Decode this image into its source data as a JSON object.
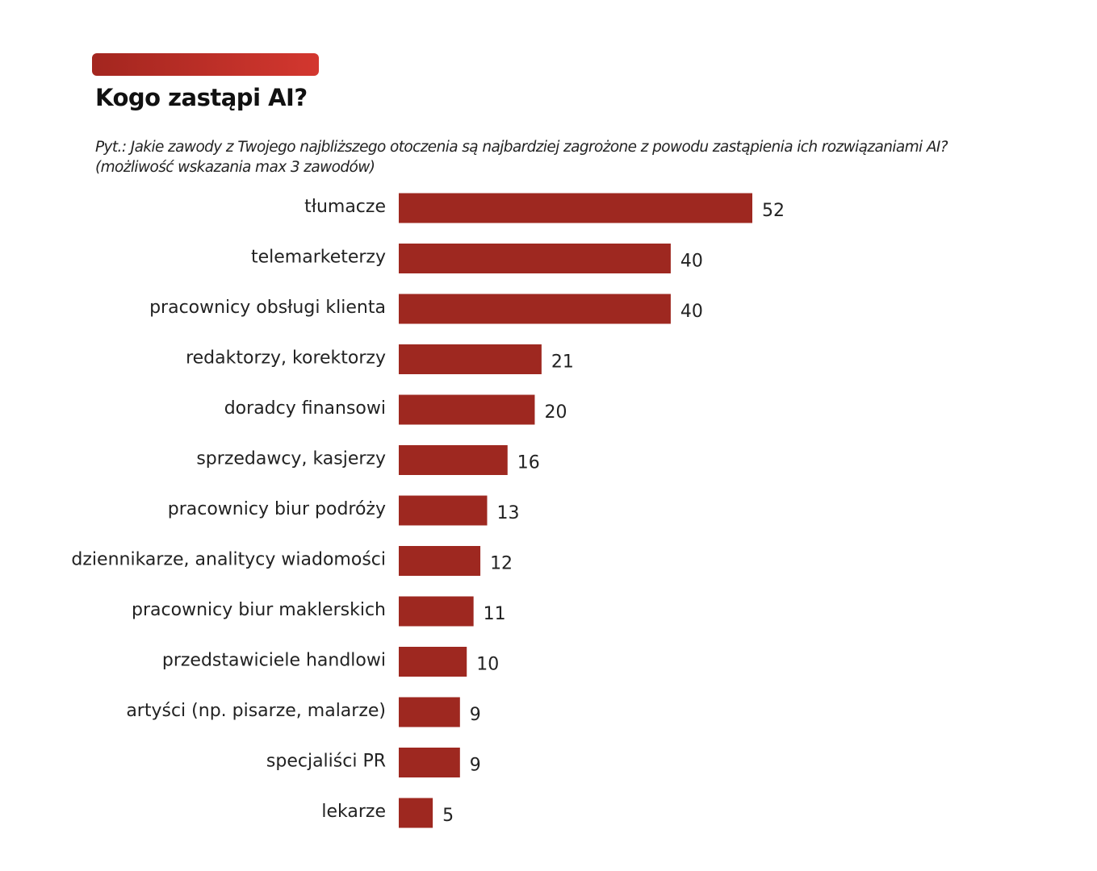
{
  "chart_data": {
    "type": "bar",
    "orientation": "horizontal",
    "title": "Kogo zastąpi AI?",
    "subtitle": "Pyt.: Jakie zawody z Twojego najbliższego otoczenia są najbardziej zagrożone z powodu zastąpienia ich rozwiązaniami AI?\n(możliwość wskazania max 3 zawodów)",
    "categories": [
      "tłumacze",
      "telemarketerzy",
      "pracownicy obsługi klienta",
      "redaktorzy, korektorzy",
      "doradcy finansowi",
      "sprzedawcy, kasjerzy",
      "pracownicy biur podróży",
      "dziennikarze, analitycy wiadomości",
      "pracownicy biur maklerskich",
      "przedstawiciele handlowi",
      "artyści (np. pisarze, malarze)",
      "specjaliści PR",
      "lekarze"
    ],
    "values": [
      52,
      40,
      40,
      21,
      20,
      16,
      13,
      12,
      11,
      10,
      9,
      9,
      5
    ],
    "xlim": [
      0,
      52
    ],
    "grid": false,
    "data_labels": true,
    "bar_color": "#9e2820",
    "accent_color": "#c1302a"
  }
}
